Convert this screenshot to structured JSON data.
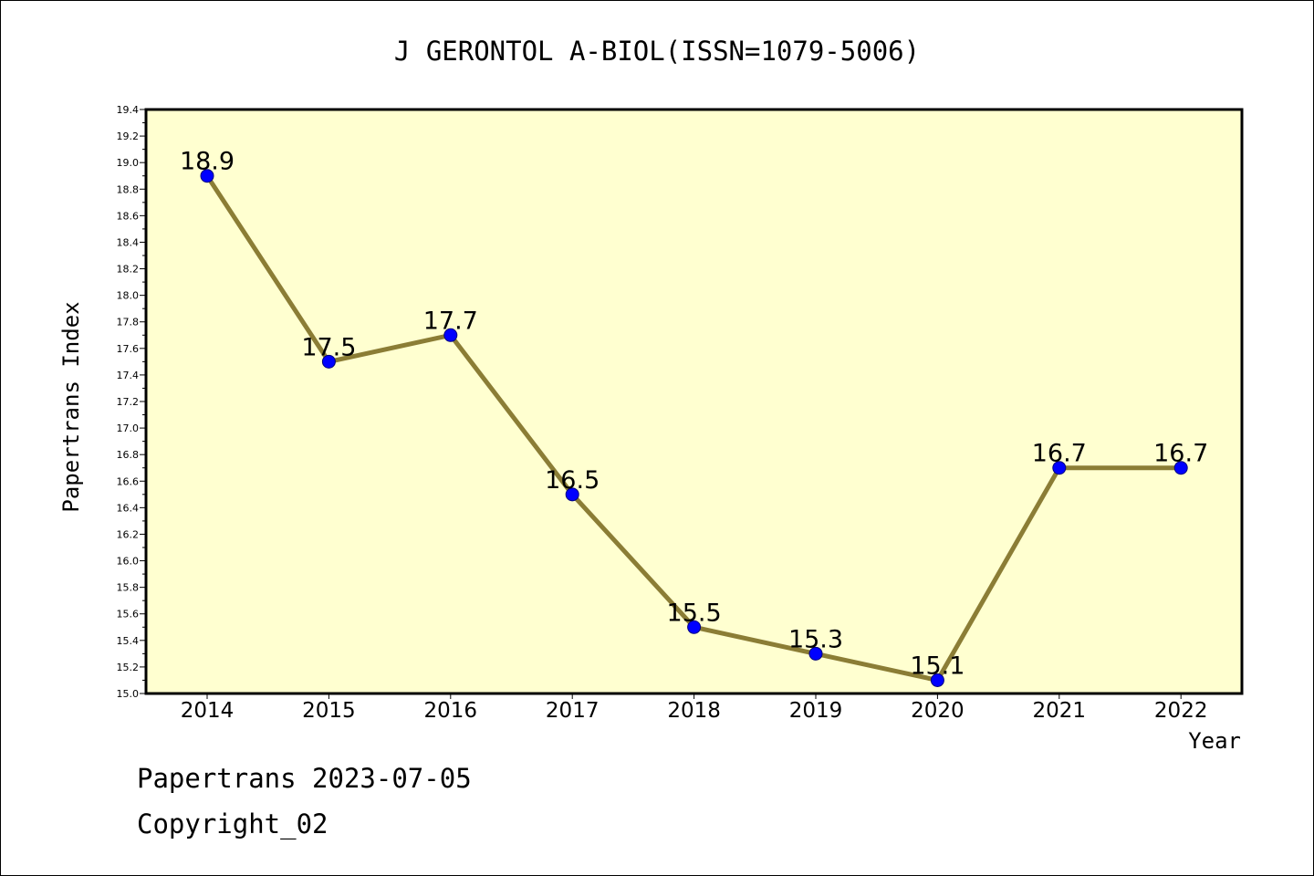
{
  "chart_data": {
    "type": "line",
    "title": "J GERONTOL A-BIOL(ISSN=1079-5006)",
    "xlabel": "Year",
    "ylabel": "Papertrans Index",
    "categories": [
      "2014",
      "2015",
      "2016",
      "2017",
      "2018",
      "2019",
      "2020",
      "2021",
      "2022"
    ],
    "series": [
      {
        "values": [
          18.9,
          17.5,
          17.7,
          16.5,
          15.5,
          15.3,
          15.1,
          16.7,
          16.7
        ]
      }
    ],
    "data_labels": [
      "18.9",
      "17.5",
      "17.7",
      "16.5",
      "15.5",
      "15.3",
      "15.1",
      "16.7",
      "16.7"
    ],
    "ylim": [
      15.0,
      19.4
    ],
    "y_ticks": [
      "15.0",
      "15.2",
      "15.4",
      "15.6",
      "15.8",
      "16.0",
      "16.2",
      "16.4",
      "16.6",
      "16.8",
      "17.0",
      "17.2",
      "17.4",
      "17.6",
      "17.8",
      "18.0",
      "18.2",
      "18.4",
      "18.6",
      "18.8",
      "19.0",
      "19.2",
      "19.4"
    ],
    "grid": false,
    "legend": "none",
    "colors": {
      "plot_background": "#ffffd0",
      "line": "#8b7d35",
      "marker": "#0000ff",
      "marker_edge": "#000080",
      "axis": "#000000"
    }
  },
  "footer": {
    "line1": "Papertrans 2023-07-05",
    "line2": "Copyright_02"
  }
}
